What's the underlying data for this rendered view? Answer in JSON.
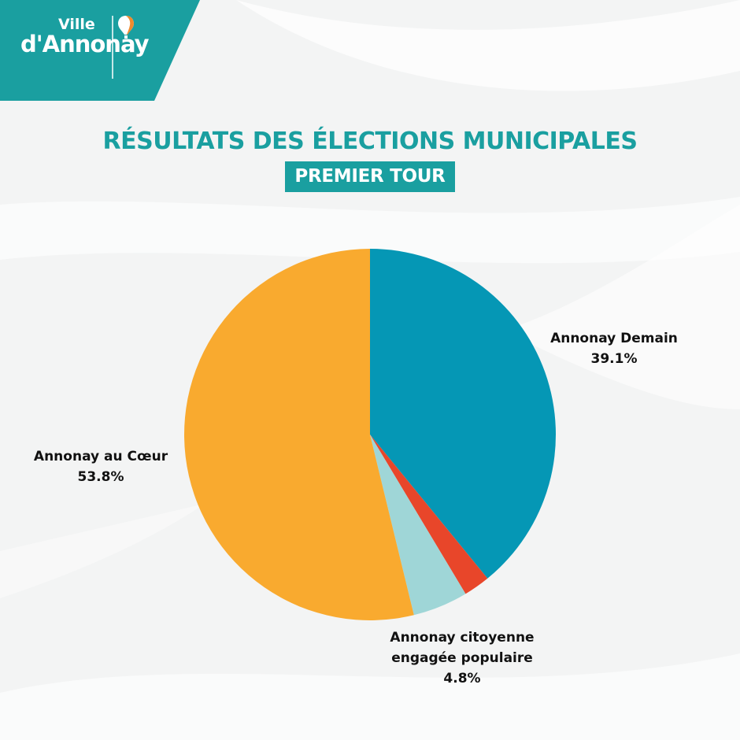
{
  "logo": {
    "line1": "Ville",
    "line2": "d'Annonay"
  },
  "title": "RÉSULTATS DES ÉLECTIONS MUNICIPALES",
  "subtitle": "PREMIER TOUR",
  "colors": {
    "brand_teal": "#1a9fa0",
    "annonay_demain": "#0597b5",
    "red_list": "#e8462a",
    "annonay_citoyenne": "#9fd6d7",
    "annonay_au_coeur": "#f9aa2f"
  },
  "chart_data": {
    "type": "pie",
    "title": "RÉSULTATS DES ÉLECTIONS MUNICIPALES",
    "subtitle": "PREMIER TOUR",
    "start": "12 o'clock",
    "direction": "clockwise",
    "slices": [
      {
        "label": "Annonay Demain",
        "value": 39.1,
        "value_label": "39.1%",
        "color": "#0597b5"
      },
      {
        "label": "",
        "value": 2.3,
        "value_label": "",
        "color": "#e8462a"
      },
      {
        "label": "Annonay citoyenne engagée populaire",
        "label_lines": [
          "Annonay citoyenne",
          "engagée populaire"
        ],
        "value": 4.8,
        "value_label": "4.8%",
        "color": "#9fd6d7"
      },
      {
        "label": "Annonay au Cœur",
        "value": 53.8,
        "value_label": "53.8%",
        "color": "#f9aa2f"
      }
    ]
  }
}
